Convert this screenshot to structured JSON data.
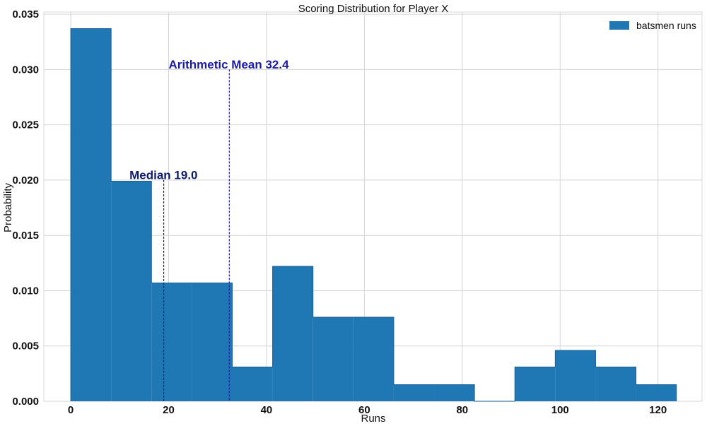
{
  "chart_data": {
    "type": "bar",
    "title": "Scoring Distribution for Player X",
    "xlabel": "Runs",
    "ylabel": "Probability",
    "xlim": [
      -5.5,
      129
    ],
    "ylim": [
      0,
      0.0352
    ],
    "xticks": [
      0,
      20,
      40,
      60,
      80,
      100,
      120
    ],
    "yticks": [
      0.0,
      0.005,
      0.01,
      0.015,
      0.02,
      0.025,
      0.03,
      0.035
    ],
    "ytick_labels": [
      "0.000",
      "0.005",
      "0.010",
      "0.015",
      "0.020",
      "0.025",
      "0.030",
      "0.035"
    ],
    "grid": true,
    "legend_position": "top-right",
    "series": [
      {
        "name": "batsmen runs",
        "color": "#1f77b4",
        "bins": [
          {
            "x0": 0.0,
            "x1": 8.25,
            "value": 0.0337
          },
          {
            "x0": 8.25,
            "x1": 16.5,
            "value": 0.0199
          },
          {
            "x0": 16.5,
            "x1": 24.75,
            "value": 0.0107
          },
          {
            "x0": 24.75,
            "x1": 33.0,
            "value": 0.0107
          },
          {
            "x0": 33.0,
            "x1": 41.25,
            "value": 0.0031
          },
          {
            "x0": 41.25,
            "x1": 49.5,
            "value": 0.0122
          },
          {
            "x0": 49.5,
            "x1": 57.75,
            "value": 0.0076
          },
          {
            "x0": 57.75,
            "x1": 66.0,
            "value": 0.0076
          },
          {
            "x0": 66.0,
            "x1": 74.25,
            "value": 0.0015
          },
          {
            "x0": 74.25,
            "x1": 82.5,
            "value": 0.0015
          },
          {
            "x0": 82.5,
            "x1": 90.75,
            "value": 0.0
          },
          {
            "x0": 90.75,
            "x1": 99.0,
            "value": 0.0031
          },
          {
            "x0": 99.0,
            "x1": 107.25,
            "value": 0.0046
          },
          {
            "x0": 107.25,
            "x1": 115.5,
            "value": 0.0031
          },
          {
            "x0": 115.5,
            "x1": 123.75,
            "value": 0.0015
          }
        ]
      }
    ],
    "reference_lines": [
      {
        "label": "Median 19.0",
        "x": 19.0,
        "y_top": 0.02,
        "color": "#0d1b6e",
        "label_x": 12,
        "label_y": 0.0201
      },
      {
        "label": "Arithmetic Mean 32.4",
        "x": 32.4,
        "y_top": 0.03,
        "color": "#1a1aa6",
        "label_x": 20,
        "label_y": 0.0301
      }
    ]
  }
}
